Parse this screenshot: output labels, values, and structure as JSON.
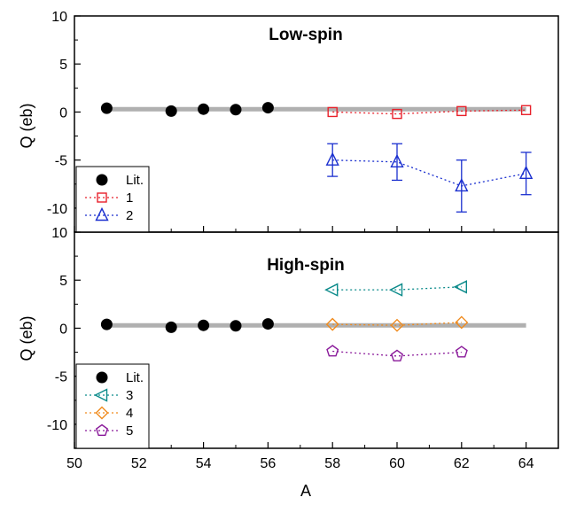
{
  "chart_data": [
    {
      "type": "scatter",
      "title": "Low-spin",
      "xlabel": "",
      "ylabel": "Q (eb)",
      "xlim": [
        50,
        65
      ],
      "ylim": [
        -12.5,
        10
      ],
      "xticks": [
        50,
        52,
        54,
        56,
        58,
        60,
        62,
        64
      ],
      "yticks": [
        10,
        5,
        0,
        -5,
        -10
      ],
      "ytick_labels": [
        "10",
        "5",
        "0",
        "-5",
        "-10"
      ],
      "reference_line": {
        "x": [
          51,
          64
        ],
        "y": 0.3,
        "color": "#b0b0b0"
      },
      "legend": {
        "placement": "bottom-left"
      },
      "series": [
        {
          "name": "Lit.",
          "marker": "circle",
          "color": "#000000",
          "line": false,
          "x": [
            51,
            53,
            54,
            55,
            56
          ],
          "y": [
            0.4,
            0.1,
            0.3,
            0.25,
            0.45
          ],
          "err": []
        },
        {
          "name": "1",
          "marker": "square",
          "color": "#e8202a",
          "line": true,
          "x": [
            58,
            60,
            62,
            64
          ],
          "y": [
            0.0,
            -0.2,
            0.1,
            0.2
          ],
          "err": [
            0.2,
            0.2,
            0.2,
            0.2
          ]
        },
        {
          "name": "2",
          "marker": "triangle-up",
          "color": "#1a2fcf",
          "line": true,
          "x": [
            58,
            60,
            62,
            64
          ],
          "y": [
            -5.0,
            -5.2,
            -7.7,
            -6.4
          ],
          "err": [
            1.7,
            1.9,
            2.7,
            2.2
          ]
        }
      ]
    },
    {
      "type": "scatter",
      "title": "High-spin",
      "xlabel": "A",
      "ylabel": "Q (eb)",
      "xlim": [
        50,
        65
      ],
      "ylim": [
        -12.5,
        10
      ],
      "xticks": [
        50,
        52,
        54,
        56,
        58,
        60,
        62,
        64
      ],
      "yticks": [
        10,
        5,
        0,
        -5,
        -10
      ],
      "ytick_labels": [
        "10",
        "5",
        "0",
        "-5",
        "-10"
      ],
      "reference_line": {
        "x": [
          51,
          64
        ],
        "y": 0.3,
        "color": "#b0b0b0"
      },
      "legend": {
        "placement": "bottom-left"
      },
      "series": [
        {
          "name": "Lit.",
          "marker": "circle",
          "color": "#000000",
          "line": false,
          "x": [
            51,
            53,
            54,
            55,
            56
          ],
          "y": [
            0.4,
            0.1,
            0.3,
            0.25,
            0.45
          ],
          "err": []
        },
        {
          "name": "3",
          "marker": "triangle-left",
          "color": "#0a8a8a",
          "line": true,
          "x": [
            58,
            60,
            62
          ],
          "y": [
            4.0,
            4.0,
            4.3
          ],
          "err": [
            0.3,
            0.3,
            0.3
          ]
        },
        {
          "name": "4",
          "marker": "diamond",
          "color": "#f08a1c",
          "line": true,
          "x": [
            58,
            60,
            62
          ],
          "y": [
            0.4,
            0.3,
            0.6
          ],
          "err": [
            0.3,
            0.3,
            0.3
          ]
        },
        {
          "name": "5",
          "marker": "pentagon",
          "color": "#8a1a9a",
          "line": true,
          "x": [
            58,
            60,
            62
          ],
          "y": [
            -2.4,
            -2.9,
            -2.5
          ],
          "err": [
            0.3,
            0.3,
            0.3
          ]
        }
      ]
    }
  ]
}
